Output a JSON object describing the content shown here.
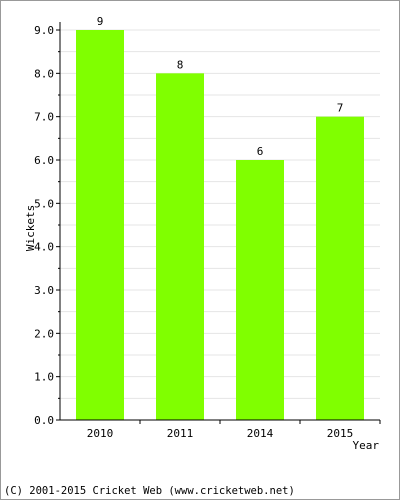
{
  "chart_data": {
    "type": "bar",
    "categories": [
      "2010",
      "2011",
      "2014",
      "2015"
    ],
    "values": [
      9,
      8,
      6,
      7
    ],
    "data_labels": [
      "9",
      "8",
      "6",
      "7"
    ],
    "xlabel": "Year",
    "ylabel": "Wickets",
    "ylim": [
      0,
      9
    ],
    "yticks": [
      "0.0",
      "1.0",
      "2.0",
      "3.0",
      "4.0",
      "5.0",
      "6.0",
      "7.0",
      "8.0",
      "9.0"
    ],
    "grid": true,
    "bar_color": "#80ff00"
  },
  "footer": {
    "copyright": "(C) 2001-2015 Cricket Web (www.cricketweb.net)"
  }
}
